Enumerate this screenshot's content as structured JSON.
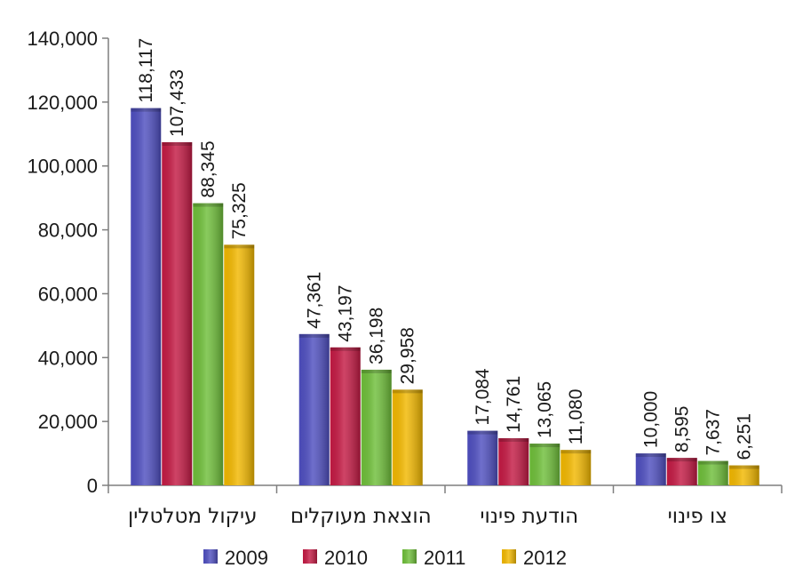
{
  "chart_data": {
    "type": "bar",
    "categories": [
      "עיקול מטלטלין",
      "הוצאת מעוקלים",
      "הודעת פינוי",
      "צו פינוי"
    ],
    "series": [
      {
        "name": "2009",
        "color": "#4f4fc0",
        "values": [
          118117,
          47361,
          17084,
          10000
        ],
        "labels": [
          "118,117",
          "47,361",
          "17,084",
          "10,000"
        ]
      },
      {
        "name": "2010",
        "color": "#c41a44",
        "values": [
          107433,
          43197,
          14761,
          8595
        ],
        "labels": [
          "107,433",
          "43,197",
          "14,761",
          "8,595"
        ]
      },
      {
        "name": "2011",
        "color": "#6fbf3a",
        "values": [
          88345,
          36198,
          13065,
          7637
        ],
        "labels": [
          "88,345",
          "36,198",
          "13,065",
          "7,637"
        ]
      },
      {
        "name": "2012",
        "color": "#f2b800",
        "values": [
          75325,
          29958,
          11080,
          6251
        ],
        "labels": [
          "75,325",
          "29,958",
          "11,080",
          "6,251"
        ]
      }
    ],
    "ylim": [
      0,
      140000
    ],
    "yticks": [
      0,
      20000,
      40000,
      60000,
      80000,
      100000,
      120000,
      140000
    ],
    "ytick_labels": [
      "0",
      "20,000",
      "40,000",
      "60,000",
      "80,000",
      "100,000",
      "120,000",
      "140,000"
    ],
    "legend_position": "bottom",
    "grid": false
  }
}
